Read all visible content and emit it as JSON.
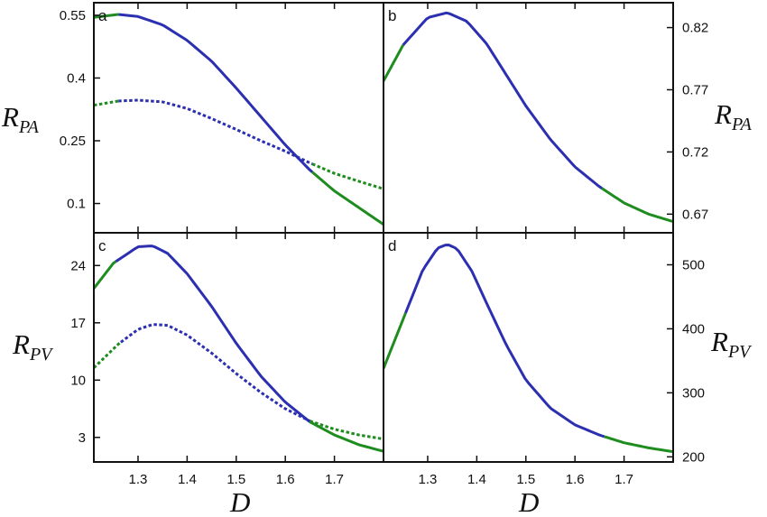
{
  "colors": {
    "stable": "#1e8c1e",
    "oscillatory": "#2b2fb0",
    "frame": "#111111"
  },
  "axis_titles": {
    "x_main": "D",
    "y_top_left": {
      "main": "R",
      "sub": "PA"
    },
    "y_top_right": {
      "main": "R",
      "sub": "PA"
    },
    "y_bottom_left": {
      "main": "R",
      "sub": "PV"
    },
    "y_bottom_right": {
      "main": "R",
      "sub": "PV"
    }
  },
  "chart_data": [
    {
      "panel": "a",
      "type": "line",
      "ylabel": "RPA",
      "ylabel_side": "left",
      "xlim": [
        1.21,
        1.8
      ],
      "ylim": [
        0.03,
        0.58
      ],
      "xticks": [
        1.3,
        1.4,
        1.5,
        1.6,
        1.7
      ],
      "yticks": [
        0.1,
        0.25,
        0.4,
        0.55
      ],
      "ytick_labels": [
        "0.1",
        "0.25",
        "0.4",
        "0.55"
      ],
      "series": [
        {
          "style": "solid",
          "x": [
            1.21,
            1.26,
            1.3,
            1.35,
            1.4,
            1.45,
            1.5,
            1.55,
            1.6,
            1.65,
            1.7,
            1.75,
            1.8
          ],
          "y": [
            0.545,
            0.552,
            0.547,
            0.527,
            0.49,
            0.44,
            0.376,
            0.308,
            0.24,
            0.18,
            0.13,
            0.09,
            0.05
          ],
          "segments": [
            [
              1.21,
              1.26,
              "stable"
            ],
            [
              1.26,
              1.655,
              "oscillatory"
            ],
            [
              1.655,
              1.8,
              "stable"
            ]
          ]
        },
        {
          "style": "dotted",
          "x": [
            1.21,
            1.26,
            1.3,
            1.35,
            1.4,
            1.45,
            1.5,
            1.55,
            1.6,
            1.65,
            1.7,
            1.75,
            1.8
          ],
          "y": [
            0.335,
            0.345,
            0.347,
            0.343,
            0.327,
            0.303,
            0.277,
            0.25,
            0.225,
            0.197,
            0.172,
            0.153,
            0.135
          ],
          "segments": [
            [
              1.21,
              1.26,
              "stable"
            ],
            [
              1.26,
              1.655,
              "oscillatory"
            ],
            [
              1.655,
              1.8,
              "stable"
            ]
          ]
        }
      ]
    },
    {
      "panel": "b",
      "type": "line",
      "ylabel": "RPA",
      "ylabel_side": "right",
      "xlim": [
        1.21,
        1.8
      ],
      "ylim": [
        0.655,
        0.84
      ],
      "xticks": [
        1.3,
        1.4,
        1.5,
        1.6,
        1.7
      ],
      "yticks": [
        0.67,
        0.72,
        0.77,
        0.82
      ],
      "ytick_labels": [
        "0.67",
        "0.72",
        "0.77",
        "0.82"
      ],
      "series": [
        {
          "style": "solid",
          "x": [
            1.21,
            1.25,
            1.3,
            1.34,
            1.38,
            1.42,
            1.46,
            1.5,
            1.55,
            1.6,
            1.65,
            1.7,
            1.75,
            1.8
          ],
          "y": [
            0.777,
            0.806,
            0.828,
            0.832,
            0.825,
            0.807,
            0.782,
            0.757,
            0.73,
            0.708,
            0.692,
            0.679,
            0.67,
            0.664
          ],
          "segments": [
            [
              1.21,
              1.25,
              "stable"
            ],
            [
              1.25,
              1.655,
              "oscillatory"
            ],
            [
              1.655,
              1.8,
              "stable"
            ]
          ]
        }
      ]
    },
    {
      "panel": "c",
      "type": "line",
      "ylabel": "RPV",
      "ylabel_side": "left",
      "xlim": [
        1.21,
        1.8
      ],
      "ylim": [
        0,
        28
      ],
      "xticks": [
        1.3,
        1.4,
        1.5,
        1.6,
        1.7
      ],
      "xtick_labels": [
        "1.3",
        "1.4",
        "1.5",
        "1.6",
        "1.7"
      ],
      "yticks": [
        3,
        10,
        17,
        24
      ],
      "ytick_labels": [
        "3",
        "10",
        "17",
        "24"
      ],
      "series": [
        {
          "style": "solid",
          "x": [
            1.21,
            1.25,
            1.3,
            1.33,
            1.36,
            1.4,
            1.45,
            1.5,
            1.55,
            1.6,
            1.65,
            1.7,
            1.75,
            1.8
          ],
          "y": [
            21.2,
            24.3,
            26.3,
            26.4,
            25.5,
            23.0,
            19.0,
            14.5,
            10.5,
            7.3,
            4.9,
            3.3,
            2.1,
            1.3
          ],
          "segments": [
            [
              1.21,
              1.255,
              "stable"
            ],
            [
              1.255,
              1.65,
              "oscillatory"
            ],
            [
              1.65,
              1.8,
              "stable"
            ]
          ]
        },
        {
          "style": "dotted",
          "x": [
            1.21,
            1.26,
            1.3,
            1.33,
            1.36,
            1.4,
            1.45,
            1.5,
            1.55,
            1.6,
            1.65,
            1.7,
            1.75,
            1.8
          ],
          "y": [
            11.5,
            14.4,
            16.2,
            16.8,
            16.7,
            15.5,
            13.3,
            10.8,
            8.5,
            6.5,
            5.0,
            4.0,
            3.3,
            2.8
          ],
          "segments": [
            [
              1.21,
              1.265,
              "stable"
            ],
            [
              1.265,
              1.65,
              "oscillatory"
            ],
            [
              1.65,
              1.8,
              "stable"
            ]
          ]
        }
      ]
    },
    {
      "panel": "d",
      "type": "line",
      "ylabel": "RPV",
      "ylabel_side": "right",
      "xlim": [
        1.21,
        1.8
      ],
      "ylim": [
        192,
        550
      ],
      "xticks": [
        1.3,
        1.4,
        1.5,
        1.6,
        1.7
      ],
      "xtick_labels": [
        "1.3",
        "1.4",
        "1.5",
        "1.6",
        "1.7"
      ],
      "yticks": [
        200,
        300,
        400,
        500
      ],
      "ytick_labels": [
        "200",
        "300",
        "400",
        "500"
      ],
      "series": [
        {
          "style": "solid",
          "x": [
            1.21,
            1.25,
            1.29,
            1.32,
            1.34,
            1.36,
            1.39,
            1.42,
            1.46,
            1.5,
            1.55,
            1.6,
            1.65,
            1.7,
            1.75,
            1.8
          ],
          "y": [
            338,
            415,
            492,
            526,
            532,
            525,
            490,
            440,
            375,
            320,
            276,
            250,
            234,
            222,
            214,
            208
          ],
          "segments": [
            [
              1.21,
              1.255,
              "stable"
            ],
            [
              1.255,
              1.66,
              "oscillatory"
            ],
            [
              1.66,
              1.8,
              "stable"
            ]
          ]
        }
      ]
    }
  ]
}
